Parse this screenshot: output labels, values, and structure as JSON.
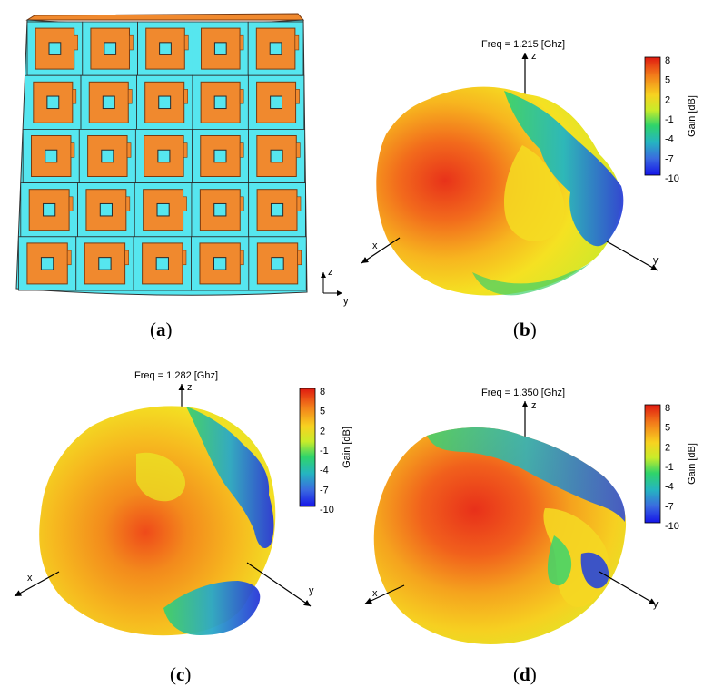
{
  "panels": {
    "a": {
      "caption": "a",
      "axes": {
        "z": "z",
        "y": "y"
      },
      "grid_rows": 5,
      "grid_cols": 5
    },
    "b": {
      "caption": "b",
      "freq_label": "Freq = 1.215 [Ghz]",
      "axes": {
        "x": "x",
        "y": "y",
        "z": "z"
      }
    },
    "c": {
      "caption": "c",
      "freq_label": "Freq = 1.282 [Ghz]",
      "axes": {
        "x": "x",
        "y": "y",
        "z": "z"
      }
    },
    "d": {
      "caption": "d",
      "freq_label": "Freq = 1.350 [Ghz]",
      "axes": {
        "x": "x",
        "y": "y",
        "z": "z"
      }
    }
  },
  "colorbar": {
    "title": "Gain [dB]",
    "ticks": [
      "8",
      "5",
      "2",
      "-1",
      "-4",
      "-7",
      "-10"
    ],
    "colors": [
      "#e8261b",
      "#f58a1c",
      "#f8d321",
      "#c9ea2a",
      "#3bd65d",
      "#2bb3b8",
      "#3b5bd6",
      "#2020e0"
    ]
  },
  "colors": {
    "patch": "#f0892e",
    "patch_edge": "#7a3a10",
    "substrate": "#56e6ef",
    "aperture": "#56e6ef"
  }
}
